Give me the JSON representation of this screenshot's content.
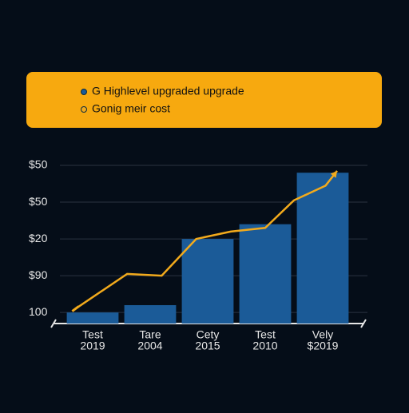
{
  "chart_data": {
    "type": "bar",
    "categories": [
      [
        "Test",
        "2019"
      ],
      [
        "Tare",
        "2004"
      ],
      [
        "Cety",
        "2015"
      ],
      [
        "Test",
        "2010"
      ],
      [
        "Vely",
        "$2019"
      ]
    ],
    "ylim": [
      -0.3,
      4.1
    ],
    "yticks": [
      {
        "value": 0,
        "label": "100"
      },
      {
        "value": 1,
        "label": "$90"
      },
      {
        "value": 2,
        "label": "$20"
      },
      {
        "value": 3,
        "label": "$50"
      },
      {
        "value": 4,
        "label": "$50"
      }
    ],
    "grid": true,
    "series": [
      {
        "name": "G Highlevel upgraded upgrade",
        "color": "#1b5b98",
        "type": "bar",
        "values": [
          0.0,
          0.2,
          2.0,
          2.4,
          3.8
        ]
      },
      {
        "name": "Gonig meir cost",
        "color": "#f2aa1c",
        "type": "line",
        "x": [
          -0.3,
          0.6,
          1.2,
          1.8,
          2.4,
          3.0,
          3.5,
          4.05,
          4.25
        ],
        "values": [
          0.1,
          1.05,
          1.0,
          2.0,
          2.2,
          2.3,
          3.05,
          3.45,
          3.85
        ]
      }
    ]
  }
}
